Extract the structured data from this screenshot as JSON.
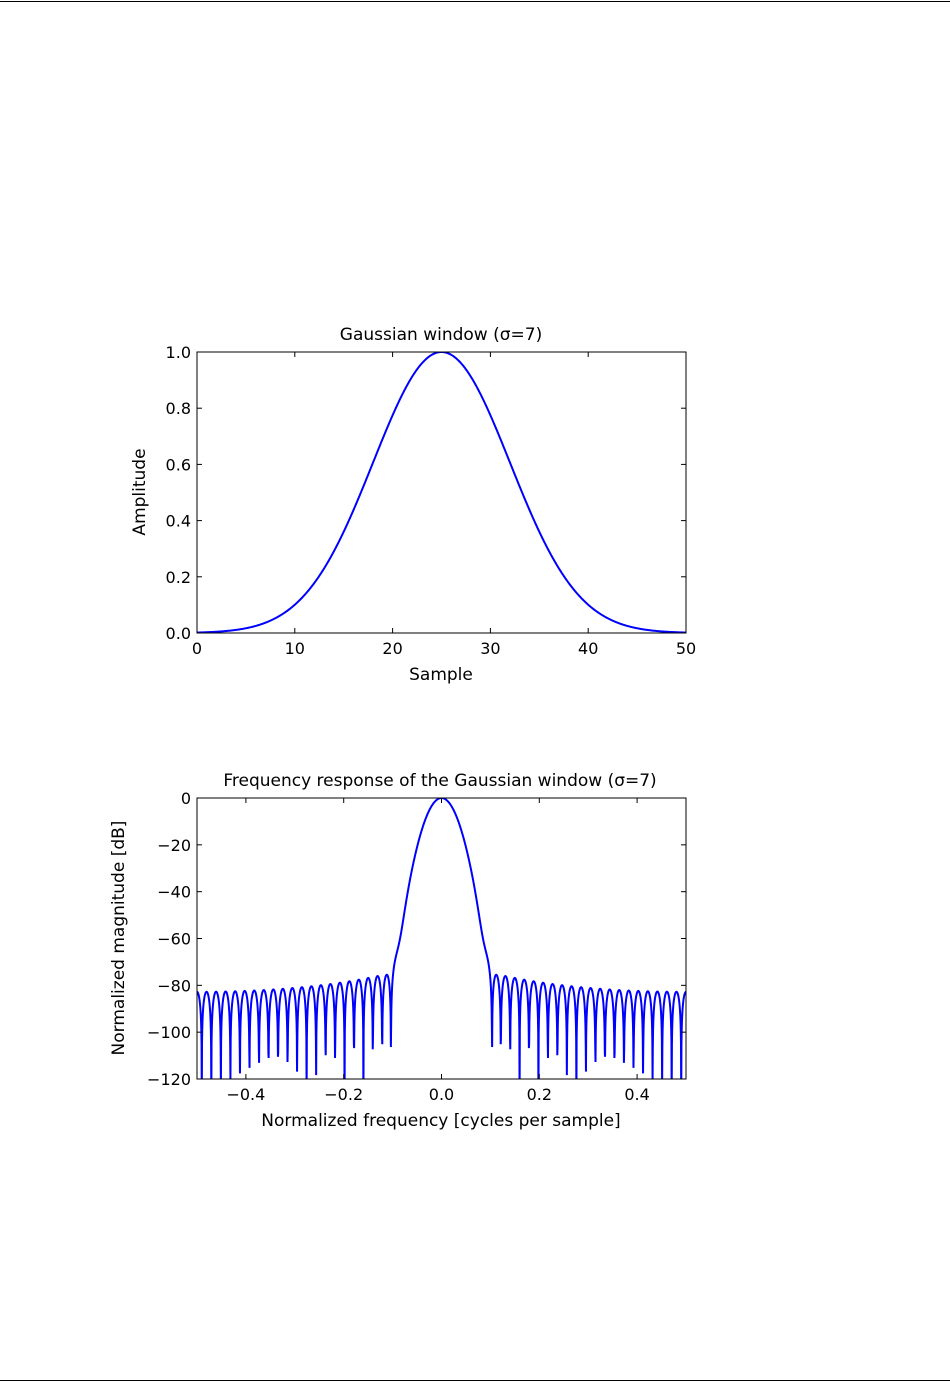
{
  "chart_data": [
    {
      "type": "line",
      "title": "Gaussian window (σ=7)",
      "xlabel": "Sample",
      "ylabel": "Amplitude",
      "xlim": [
        0,
        50
      ],
      "ylim": [
        0.0,
        1.0
      ],
      "xticks": [
        0,
        10,
        20,
        30,
        40,
        50
      ],
      "xtick_labels": [
        "0",
        "10",
        "20",
        "30",
        "40",
        "50"
      ],
      "yticks": [
        0.0,
        0.2,
        0.4,
        0.6,
        0.8,
        1.0
      ],
      "ytick_labels": [
        "0.0",
        "0.2",
        "0.4",
        "0.6",
        "0.8",
        "1.0"
      ],
      "grid": false,
      "series": [
        {
          "name": "window",
          "color": "#0000ff",
          "function": "gaussian",
          "M": 51,
          "center": 25,
          "sigma": 7
        }
      ]
    },
    {
      "type": "line",
      "title": "Frequency response of the Gaussian window (σ=7)",
      "xlabel": "Normalized frequency [cycles per sample]",
      "ylabel": "Normalized magnitude [dB]",
      "xlim": [
        -0.5,
        0.5
      ],
      "ylim": [
        -120,
        0
      ],
      "xticks": [
        -0.4,
        -0.2,
        0.0,
        0.2,
        0.4
      ],
      "xtick_labels": [
        "−0.4",
        "−0.2",
        "0.0",
        "0.2",
        "0.4"
      ],
      "yticks": [
        0,
        -20,
        -40,
        -60,
        -80,
        -100,
        -120
      ],
      "ytick_labels": [
        "0",
        "−20",
        "−40",
        "−60",
        "−80",
        "−100",
        "−120"
      ],
      "grid": false,
      "series": [
        {
          "name": "response",
          "color": "#0000ff",
          "function": "dft_magnitude_db",
          "M": 51,
          "sigma": 7,
          "fft_length": 2048
        }
      ]
    }
  ]
}
